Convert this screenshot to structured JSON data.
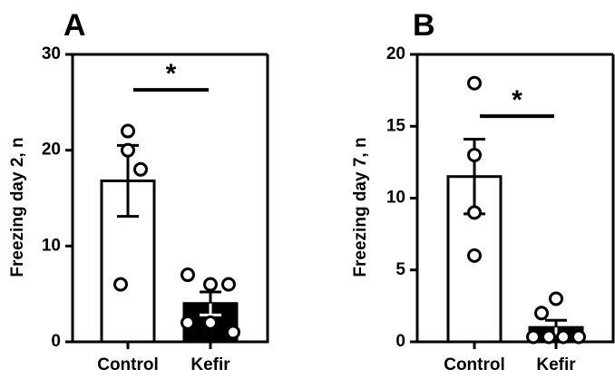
{
  "chart_data": [
    {
      "panel": "A",
      "type": "bar",
      "ylabel": "Freezing day 2, n",
      "categories": [
        "Control",
        "Kefir"
      ],
      "ylim": [
        0,
        30
      ],
      "yticks": [
        "0",
        "10",
        "20",
        "30"
      ],
      "series": [
        {
          "values": [
            16.8,
            4.0
          ],
          "error": [
            3.7,
            1.2
          ],
          "points": [
            [
              22,
              20,
              18,
              6
            ],
            [
              7,
              6,
              6,
              2,
              2,
              1
            ]
          ]
        }
      ],
      "colors": [
        "#ffffff",
        "#000000"
      ],
      "significance": "*",
      "grid": false
    },
    {
      "panel": "B",
      "type": "bar",
      "ylabel": "Freezing day 7, n",
      "categories": [
        "Control",
        "Kefir"
      ],
      "ylim": [
        0,
        20
      ],
      "yticks": [
        "0",
        "5",
        "10",
        "15",
        "20"
      ],
      "series": [
        {
          "values": [
            11.5,
            1.0
          ],
          "error": [
            2.6,
            0.5
          ],
          "points": [
            [
              18,
              13,
              9,
              6
            ],
            [
              3,
              2,
              0,
              0,
              0,
              0
            ]
          ]
        }
      ],
      "colors": [
        "#ffffff",
        "#000000"
      ],
      "significance": "*",
      "grid": false
    }
  ]
}
